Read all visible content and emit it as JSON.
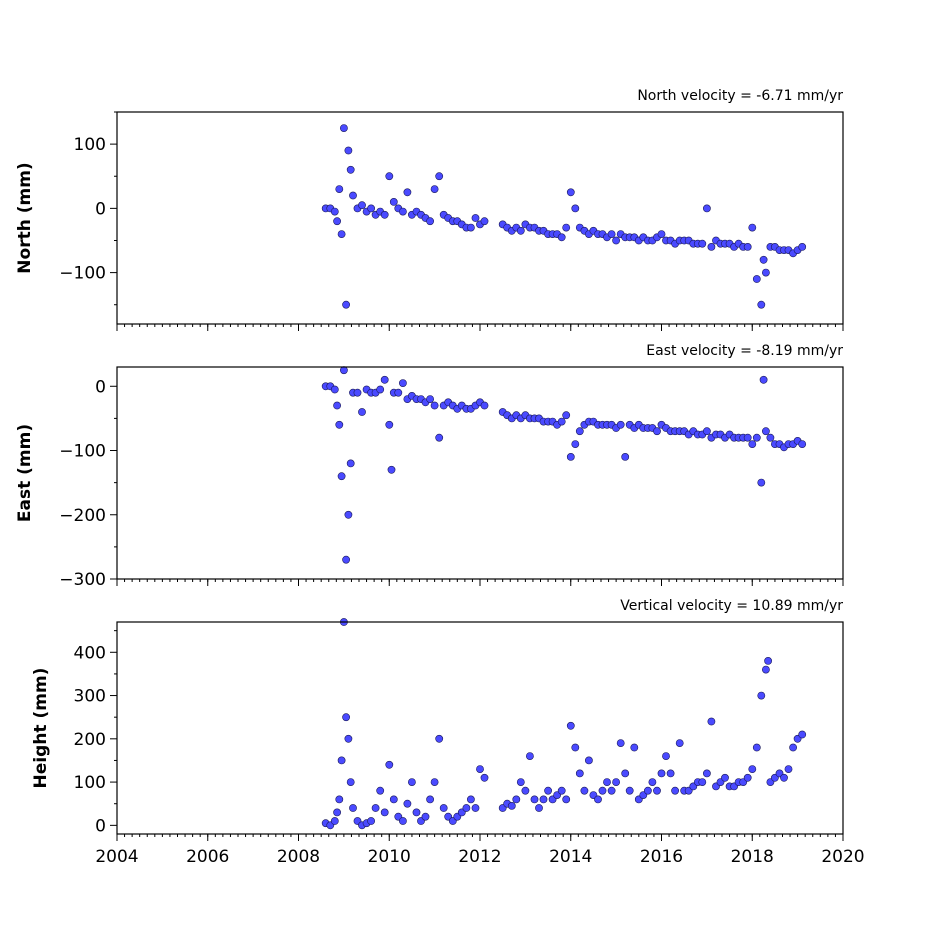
{
  "chart_data": [
    {
      "type": "scatter",
      "ylabel": "North (mm)",
      "annotation": "North velocity = -6.71 mm/yr",
      "xlim": [
        2004,
        2020
      ],
      "ylim": [
        -180,
        150
      ],
      "yticks": [
        100,
        0,
        -100
      ],
      "ytick_labels": [
        "100",
        "0",
        "−100"
      ],
      "xticks": [
        2004,
        2006,
        2008,
        2010,
        2012,
        2014,
        2016,
        2018,
        2020
      ],
      "xtick_labels": [
        "",
        "",
        "",
        "",
        "",
        "",
        "",
        "",
        ""
      ],
      "color": "#4a4aff",
      "series": [
        {
          "x": [
            2008.6,
            2008.7,
            2008.8,
            2008.85,
            2008.9,
            2008.95,
            2009.0,
            2009.05,
            2009.1,
            2009.15,
            2009.2,
            2009.3,
            2009.4,
            2009.5,
            2009.6,
            2009.7,
            2009.8,
            2009.9,
            2010.0,
            2010.1,
            2010.2,
            2010.3,
            2010.4,
            2010.5,
            2010.6,
            2010.7,
            2010.8,
            2010.9,
            2011.0,
            2011.1,
            2011.2,
            2011.3,
            2011.4,
            2011.5,
            2011.6,
            2011.7,
            2011.8,
            2011.9,
            2012.0,
            2012.1,
            2012.5,
            2012.6,
            2012.7,
            2012.8,
            2012.9,
            2013.0,
            2013.1,
            2013.2,
            2013.3,
            2013.4,
            2013.5,
            2013.6,
            2013.7,
            2013.8,
            2013.9,
            2014.0,
            2014.1,
            2014.2,
            2014.3,
            2014.4,
            2014.5,
            2014.6,
            2014.7,
            2014.8,
            2014.9,
            2015.0,
            2015.1,
            2015.2,
            2015.3,
            2015.4,
            2015.5,
            2015.6,
            2015.7,
            2015.8,
            2015.9,
            2016.0,
            2016.1,
            2016.2,
            2016.3,
            2016.4,
            2016.5,
            2016.6,
            2016.7,
            2016.8,
            2016.9,
            2017.0,
            2017.1,
            2017.2,
            2017.3,
            2017.4,
            2017.5,
            2017.6,
            2017.7,
            2017.8,
            2017.9,
            2018.0,
            2018.1,
            2018.2,
            2018.25,
            2018.3,
            2018.4,
            2018.5,
            2018.6,
            2018.7,
            2018.8,
            2018.9,
            2019.0,
            2019.1
          ],
          "y": [
            0,
            0,
            -5,
            -20,
            30,
            -40,
            125,
            -150,
            90,
            60,
            20,
            0,
            5,
            -5,
            0,
            -10,
            -5,
            -10,
            50,
            10,
            0,
            -5,
            25,
            -10,
            -5,
            -10,
            -15,
            -20,
            30,
            50,
            -10,
            -15,
            -20,
            -20,
            -25,
            -30,
            -30,
            -15,
            -25,
            -20,
            -25,
            -30,
            -35,
            -30,
            -35,
            -25,
            -30,
            -30,
            -35,
            -35,
            -40,
            -40,
            -40,
            -45,
            -30,
            25,
            0,
            -30,
            -35,
            -40,
            -35,
            -40,
            -40,
            -45,
            -40,
            -50,
            -40,
            -45,
            -45,
            -45,
            -50,
            -45,
            -50,
            -50,
            -45,
            -40,
            -50,
            -50,
            -55,
            -50,
            -50,
            -50,
            -55,
            -55,
            -55,
            0,
            -60,
            -50,
            -55,
            -55,
            -55,
            -60,
            -55,
            -60,
            -60,
            -30,
            -110,
            -150,
            -80,
            -100,
            -60,
            -60,
            -65,
            -65,
            -65,
            -70,
            -65,
            -60
          ]
        }
      ]
    },
    {
      "type": "scatter",
      "ylabel": "East (mm)",
      "annotation": "East velocity = -8.19 mm/yr",
      "xlim": [
        2004,
        2020
      ],
      "ylim": [
        -300,
        30
      ],
      "yticks": [
        0,
        -100,
        -200,
        -300
      ],
      "ytick_labels": [
        "0",
        "−100",
        "−200",
        "−300"
      ],
      "xticks": [
        2004,
        2006,
        2008,
        2010,
        2012,
        2014,
        2016,
        2018,
        2020
      ],
      "xtick_labels": [
        "",
        "",
        "",
        "",
        "",
        "",
        "",
        "",
        ""
      ],
      "color": "#4a4aff",
      "series": [
        {
          "x": [
            2008.6,
            2008.7,
            2008.8,
            2008.85,
            2008.9,
            2008.95,
            2009.0,
            2009.05,
            2009.1,
            2009.15,
            2009.2,
            2009.3,
            2009.4,
            2009.5,
            2009.6,
            2009.7,
            2009.8,
            2009.9,
            2010.0,
            2010.05,
            2010.1,
            2010.2,
            2010.3,
            2010.4,
            2010.5,
            2010.6,
            2010.7,
            2010.8,
            2010.9,
            2011.0,
            2011.1,
            2011.2,
            2011.3,
            2011.4,
            2011.5,
            2011.6,
            2011.7,
            2011.8,
            2011.9,
            2012.0,
            2012.1,
            2012.5,
            2012.6,
            2012.7,
            2012.8,
            2012.9,
            2013.0,
            2013.1,
            2013.2,
            2013.3,
            2013.4,
            2013.5,
            2013.6,
            2013.7,
            2013.8,
            2013.9,
            2014.0,
            2014.1,
            2014.2,
            2014.3,
            2014.4,
            2014.5,
            2014.6,
            2014.7,
            2014.8,
            2014.9,
            2015.0,
            2015.1,
            2015.2,
            2015.3,
            2015.4,
            2015.5,
            2015.6,
            2015.7,
            2015.8,
            2015.9,
            2016.0,
            2016.1,
            2016.2,
            2016.3,
            2016.4,
            2016.5,
            2016.6,
            2016.7,
            2016.8,
            2016.9,
            2017.0,
            2017.1,
            2017.2,
            2017.3,
            2017.4,
            2017.5,
            2017.6,
            2017.7,
            2017.8,
            2017.9,
            2018.0,
            2018.1,
            2018.2,
            2018.25,
            2018.3,
            2018.4,
            2018.5,
            2018.6,
            2018.7,
            2018.8,
            2018.9,
            2019.0,
            2019.1
          ],
          "y": [
            0,
            0,
            -5,
            -30,
            -60,
            -140,
            25,
            -270,
            -200,
            -120,
            -10,
            -10,
            -40,
            -5,
            -10,
            -10,
            -5,
            10,
            -60,
            -130,
            -10,
            -10,
            5,
            -20,
            -15,
            -20,
            -20,
            -25,
            -20,
            -30,
            -80,
            -30,
            -25,
            -30,
            -35,
            -30,
            -35,
            -35,
            -30,
            -25,
            -30,
            -40,
            -45,
            -50,
            -45,
            -50,
            -45,
            -50,
            -50,
            -50,
            -55,
            -55,
            -55,
            -60,
            -55,
            -45,
            -110,
            -90,
            -70,
            -60,
            -55,
            -55,
            -60,
            -60,
            -60,
            -60,
            -65,
            -60,
            -110,
            -60,
            -65,
            -60,
            -65,
            -65,
            -65,
            -70,
            -60,
            -65,
            -70,
            -70,
            -70,
            -70,
            -75,
            -70,
            -75,
            -75,
            -70,
            -80,
            -75,
            -75,
            -80,
            -75,
            -80,
            -80,
            -80,
            -80,
            -90,
            -80,
            -150,
            10,
            -70,
            -80,
            -90,
            -90,
            -95,
            -90,
            -90,
            -85,
            -90
          ]
        }
      ]
    },
    {
      "type": "scatter",
      "ylabel": "Height (mm)",
      "annotation": "Vertical velocity = 10.89 mm/yr",
      "xlim": [
        2004,
        2020
      ],
      "ylim": [
        -20,
        470
      ],
      "yticks": [
        0,
        100,
        200,
        300,
        400
      ],
      "ytick_labels": [
        "0",
        "100",
        "200",
        "300",
        "400"
      ],
      "xticks": [
        2004,
        2006,
        2008,
        2010,
        2012,
        2014,
        2016,
        2018,
        2020
      ],
      "xtick_labels": [
        "2004",
        "2006",
        "2008",
        "2010",
        "2012",
        "2014",
        "2016",
        "2018",
        "2020"
      ],
      "color": "#4a4aff",
      "series": [
        {
          "x": [
            2008.6,
            2008.7,
            2008.8,
            2008.85,
            2008.9,
            2008.95,
            2009.0,
            2009.05,
            2009.1,
            2009.15,
            2009.2,
            2009.3,
            2009.4,
            2009.5,
            2009.6,
            2009.7,
            2009.8,
            2009.9,
            2010.0,
            2010.1,
            2010.2,
            2010.3,
            2010.4,
            2010.5,
            2010.6,
            2010.7,
            2010.8,
            2010.9,
            2011.0,
            2011.1,
            2011.2,
            2011.3,
            2011.4,
            2011.5,
            2011.6,
            2011.7,
            2011.8,
            2011.9,
            2012.0,
            2012.1,
            2012.5,
            2012.6,
            2012.7,
            2012.8,
            2012.9,
            2013.0,
            2013.1,
            2013.2,
            2013.3,
            2013.4,
            2013.5,
            2013.6,
            2013.7,
            2013.8,
            2013.9,
            2014.0,
            2014.1,
            2014.2,
            2014.3,
            2014.4,
            2014.5,
            2014.6,
            2014.7,
            2014.8,
            2014.9,
            2015.0,
            2015.1,
            2015.2,
            2015.3,
            2015.4,
            2015.5,
            2015.6,
            2015.7,
            2015.8,
            2015.9,
            2016.0,
            2016.1,
            2016.2,
            2016.3,
            2016.4,
            2016.5,
            2016.6,
            2016.7,
            2016.8,
            2016.9,
            2017.0,
            2017.1,
            2017.2,
            2017.3,
            2017.4,
            2017.5,
            2017.6,
            2017.7,
            2017.8,
            2017.9,
            2018.0,
            2018.1,
            2018.2,
            2018.3,
            2018.35,
            2018.4,
            2018.5,
            2018.6,
            2018.7,
            2018.8,
            2018.9,
            2019.0,
            2019.1
          ],
          "y": [
            5,
            0,
            10,
            30,
            60,
            150,
            470,
            250,
            200,
            100,
            40,
            10,
            0,
            5,
            10,
            40,
            80,
            30,
            140,
            60,
            20,
            10,
            50,
            100,
            30,
            10,
            20,
            60,
            100,
            200,
            40,
            20,
            10,
            20,
            30,
            40,
            60,
            40,
            130,
            110,
            40,
            50,
            45,
            60,
            100,
            80,
            160,
            60,
            40,
            60,
            80,
            60,
            70,
            80,
            60,
            230,
            180,
            120,
            80,
            150,
            70,
            60,
            80,
            100,
            80,
            100,
            190,
            120,
            80,
            180,
            60,
            70,
            80,
            100,
            80,
            120,
            160,
            120,
            80,
            190,
            80,
            80,
            90,
            100,
            100,
            120,
            240,
            90,
            100,
            110,
            90,
            90,
            100,
            100,
            110,
            130,
            180,
            300,
            360,
            380,
            100,
            110,
            120,
            110,
            130,
            180,
            200,
            210
          ]
        }
      ]
    }
  ]
}
